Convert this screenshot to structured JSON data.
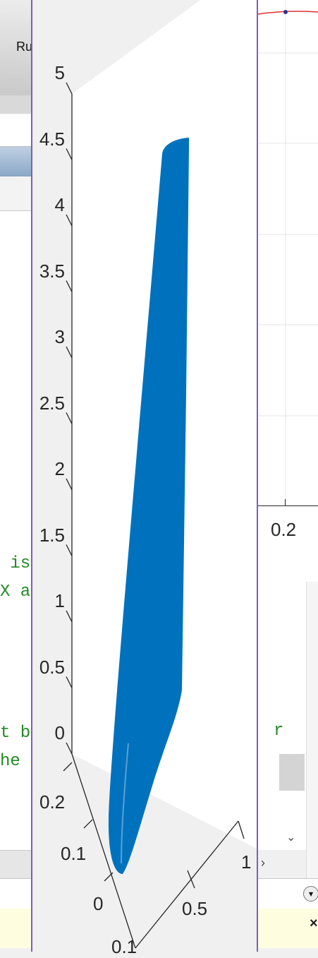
{
  "background": {
    "toolstrip_run_label": "Ru",
    "code_lines": [
      " is",
      "X a",
      "t b",
      "he"
    ],
    "right_figure_tick": "0.2",
    "right_code": "r",
    "scroll_down_glyph": "⌄",
    "scroll_right_glyph": "›",
    "options_glyph": "▾",
    "close_glyph": "×"
  },
  "figure": {
    "z_axis_ticks": [
      "0",
      "0.5",
      "1",
      "1.5",
      "2",
      "2.5",
      "3",
      "3.5",
      "4",
      "4.5",
      "5"
    ],
    "y_axis_ticks": [
      "0",
      "0.1",
      "0.2"
    ],
    "x_axis_ticks": [
      "0.5",
      "1"
    ],
    "partial_tick": "0.1",
    "surface_color": "#0072bd"
  },
  "chart_data": {
    "type": "surface3d",
    "title": "",
    "zlim": [
      0,
      5
    ],
    "ylim": [
      0,
      0.2
    ],
    "xlim": [
      0,
      1
    ],
    "series": [
      {
        "z_min": 0,
        "z_max": 4.5,
        "color": "#0072bd"
      }
    ]
  }
}
